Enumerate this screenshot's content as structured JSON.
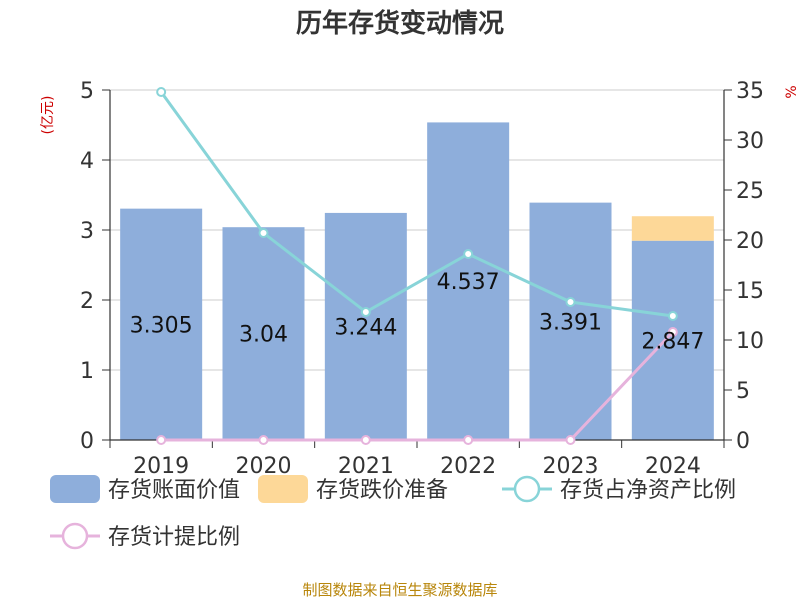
{
  "title": "历年存货变动情况",
  "source": "制图数据来自恒生聚源数据库",
  "left_unit": "(亿元)",
  "right_unit": "%",
  "legend": [
    {
      "label": "存货账面价值",
      "kind": "bar",
      "color": "#8eaedb"
    },
    {
      "label": "存货跌价准备",
      "kind": "bar",
      "color": "#fdd898"
    },
    {
      "label": "存货占净资产比例",
      "kind": "line",
      "color": "#88d4d8"
    },
    {
      "label": "存货计提比例",
      "kind": "line",
      "color": "#e6b3dc"
    }
  ],
  "chart_data": {
    "type": "bar",
    "title": "历年存货变动情况",
    "categories": [
      "2019",
      "2020",
      "2021",
      "2022",
      "2023",
      "2024"
    ],
    "y_left": {
      "label": "(亿元)",
      "range": [
        0,
        5
      ],
      "ticks": [
        "0",
        "1",
        "2",
        "3",
        "4",
        "5"
      ]
    },
    "y_right": {
      "label": "%",
      "range": [
        0,
        35
      ],
      "ticks": [
        "0",
        "5",
        "10",
        "15",
        "20",
        "25",
        "30",
        "35"
      ]
    },
    "series": [
      {
        "name": "存货账面价值",
        "kind": "bar",
        "stack": "a",
        "axis": "left",
        "color": "#8eaedb",
        "values": [
          3.305,
          3.04,
          3.244,
          4.537,
          3.391,
          2.847
        ],
        "labels": [
          "3.305",
          "3.04",
          "3.244",
          "4.537",
          "3.391",
          "2.847"
        ]
      },
      {
        "name": "存货跌价准备",
        "kind": "bar",
        "stack": "a",
        "axis": "left",
        "color": "#fdd898",
        "values": [
          0,
          0,
          0,
          0,
          0,
          0.35
        ]
      },
      {
        "name": "存货占净资产比例",
        "kind": "line",
        "axis": "right",
        "color": "#88d4d8",
        "values": [
          34.8,
          20.7,
          12.8,
          18.6,
          13.8,
          12.4
        ]
      },
      {
        "name": "存货计提比例",
        "kind": "line",
        "axis": "right",
        "color": "#e6b3dc",
        "values": [
          0,
          0,
          0,
          0,
          0,
          10.8
        ]
      }
    ],
    "grid": true,
    "legend_position": "bottom"
  }
}
